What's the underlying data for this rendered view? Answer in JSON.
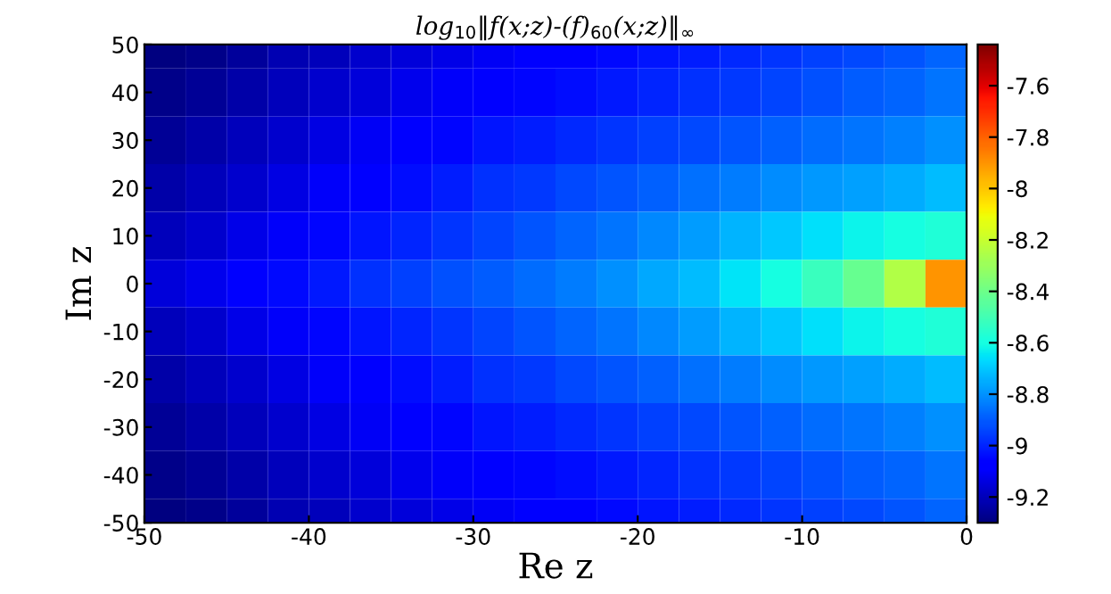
{
  "chart_data": {
    "type": "heatmap",
    "title": "log$_{10}$‖f(x;z)-(f)$_{60}$(x;z)‖$_{∞}$",
    "xlabel": "Re z",
    "ylabel": "Im z",
    "x": [
      -48.75,
      -46.25,
      -43.75,
      -41.25,
      -38.75,
      -36.25,
      -33.75,
      -31.25,
      -28.75,
      -26.25,
      -23.75,
      -21.25,
      -18.75,
      -16.25,
      -13.75,
      -11.25,
      -8.75,
      -6.25,
      -3.75,
      -1.25
    ],
    "y": [
      50,
      40,
      30,
      20,
      10,
      0,
      -10,
      -20,
      -30,
      -40,
      -50
    ],
    "cells": [
      [
        -9.3,
        -9.28,
        -9.25,
        -9.22,
        -9.2,
        -9.17,
        -9.15,
        -9.13,
        -9.11,
        -9.09,
        -9.07,
        -9.05,
        -9.03,
        -9.01,
        -8.99,
        -8.97,
        -8.95,
        -8.93,
        -8.91,
        -8.88
      ],
      [
        -9.28,
        -9.26,
        -9.23,
        -9.2,
        -9.17,
        -9.15,
        -9.12,
        -9.1,
        -9.08,
        -9.06,
        -9.04,
        -9.02,
        -9.0,
        -8.98,
        -8.96,
        -8.94,
        -8.92,
        -8.9,
        -8.88,
        -8.85
      ],
      [
        -9.26,
        -9.23,
        -9.2,
        -9.17,
        -9.14,
        -9.11,
        -9.08,
        -9.06,
        -9.03,
        -9.01,
        -8.99,
        -8.97,
        -8.95,
        -8.93,
        -8.91,
        -8.89,
        -8.87,
        -8.85,
        -8.83,
        -8.8
      ],
      [
        -9.23,
        -9.2,
        -9.17,
        -9.14,
        -9.1,
        -9.07,
        -9.04,
        -9.01,
        -8.98,
        -8.96,
        -8.93,
        -8.91,
        -8.89,
        -8.86,
        -8.84,
        -8.81,
        -8.79,
        -8.77,
        -8.75,
        -8.72
      ],
      [
        -9.2,
        -9.17,
        -9.13,
        -9.1,
        -9.06,
        -9.03,
        -9.0,
        -8.97,
        -8.94,
        -8.91,
        -8.88,
        -8.85,
        -8.82,
        -8.78,
        -8.74,
        -8.7,
        -8.66,
        -8.62,
        -8.6,
        -8.58
      ],
      [
        -9.15,
        -9.12,
        -9.08,
        -9.05,
        -9.02,
        -8.98,
        -8.95,
        -8.92,
        -8.9,
        -8.87,
        -8.84,
        -8.8,
        -8.76,
        -8.72,
        -8.65,
        -8.6,
        -8.52,
        -8.42,
        -8.25,
        -7.9
      ],
      [
        -9.2,
        -9.17,
        -9.13,
        -9.1,
        -9.06,
        -9.03,
        -9.0,
        -8.97,
        -8.94,
        -8.91,
        -8.88,
        -8.85,
        -8.82,
        -8.78,
        -8.74,
        -8.7,
        -8.66,
        -8.62,
        -8.6,
        -8.58
      ],
      [
        -9.23,
        -9.2,
        -9.17,
        -9.14,
        -9.1,
        -9.07,
        -9.04,
        -9.01,
        -8.98,
        -8.96,
        -8.93,
        -8.91,
        -8.89,
        -8.86,
        -8.84,
        -8.81,
        -8.79,
        -8.77,
        -8.75,
        -8.72
      ],
      [
        -9.26,
        -9.23,
        -9.2,
        -9.17,
        -9.14,
        -9.11,
        -9.08,
        -9.06,
        -9.03,
        -9.01,
        -8.99,
        -8.97,
        -8.95,
        -8.93,
        -8.91,
        -8.89,
        -8.87,
        -8.85,
        -8.83,
        -8.8
      ],
      [
        -9.28,
        -9.26,
        -9.23,
        -9.2,
        -9.17,
        -9.15,
        -9.12,
        -9.1,
        -9.08,
        -9.06,
        -9.04,
        -9.02,
        -9.0,
        -8.98,
        -8.96,
        -8.94,
        -8.92,
        -8.9,
        -8.88,
        -8.85
      ],
      [
        -9.3,
        -9.28,
        -9.25,
        -9.22,
        -9.2,
        -9.17,
        -9.15,
        -9.13,
        -9.11,
        -9.09,
        -9.07,
        -9.05,
        -9.03,
        -9.01,
        -8.99,
        -8.97,
        -8.95,
        -8.93,
        -8.91,
        -8.88
      ]
    ],
    "xlim": [
      -50,
      0
    ],
    "ylim": [
      -50,
      50
    ],
    "xticks": [
      -50,
      -40,
      -30,
      -20,
      -10,
      0
    ],
    "yticks": [
      -50,
      -40,
      -30,
      -20,
      -10,
      0,
      10,
      20,
      30,
      40,
      50
    ],
    "clim": [
      -9.3,
      -7.44
    ],
    "cticks": [
      -9.2,
      -9,
      -8.8,
      -8.6,
      -8.4,
      -8.2,
      -8,
      -7.8,
      -7.6
    ],
    "grid": false
  }
}
